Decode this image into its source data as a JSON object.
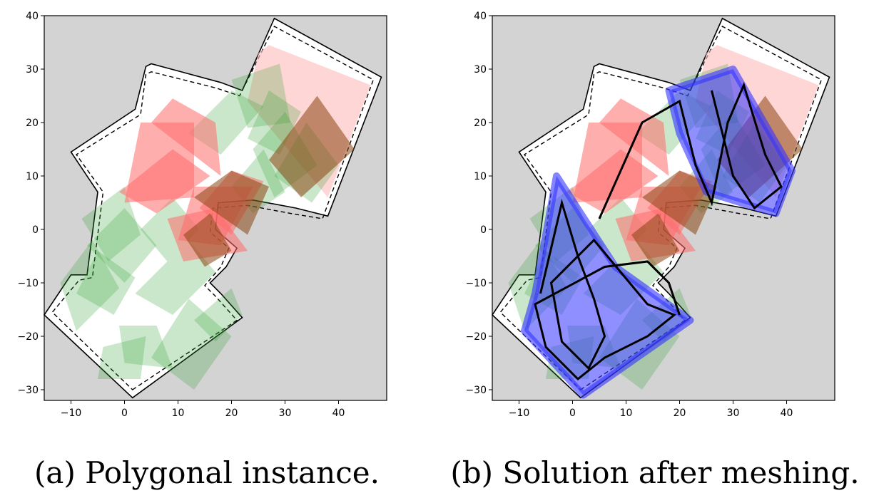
{
  "chart_data": [
    {
      "type": "polygon-plot",
      "caption": "(a) Polygonal instance.",
      "xlim": [
        -15,
        49
      ],
      "ylim": [
        -32,
        40
      ],
      "xticks": [
        -10,
        0,
        10,
        20,
        30,
        40
      ],
      "yticks": [
        -30,
        -20,
        -10,
        0,
        10,
        20,
        30,
        40
      ],
      "grid": false,
      "background": "#d3d3d3",
      "boundary": [
        [
          1.5,
          -31.5
        ],
        [
          22,
          -16.5
        ],
        [
          18,
          -12
        ],
        [
          16,
          -10
        ],
        [
          19,
          -7
        ],
        [
          21,
          -3.5
        ],
        [
          17,
          0
        ],
        [
          17.5,
          5
        ],
        [
          24,
          5.5
        ],
        [
          32,
          4
        ],
        [
          38,
          2.5
        ],
        [
          48,
          28.5
        ],
        [
          28,
          39.5
        ],
        [
          22,
          26
        ],
        [
          18,
          27.5
        ],
        [
          5,
          31
        ],
        [
          4,
          30.5
        ],
        [
          2,
          22.5
        ],
        [
          -10,
          14.5
        ],
        [
          -5,
          7
        ],
        [
          -7,
          -8.5
        ],
        [
          -10,
          -8.5
        ],
        [
          -15,
          -16
        ]
      ],
      "inner_boundary": [
        [
          1.5,
          -30
        ],
        [
          21,
          -17
        ],
        [
          17,
          -12.5
        ],
        [
          15,
          -10.5
        ],
        [
          18,
          -7
        ],
        [
          19.5,
          -3.5
        ],
        [
          16,
          -0.5
        ],
        [
          16.5,
          4
        ],
        [
          23,
          4.5
        ],
        [
          31,
          3
        ],
        [
          37,
          2
        ],
        [
          46.5,
          28
        ],
        [
          28,
          38
        ],
        [
          21.5,
          25
        ],
        [
          17,
          26.5
        ],
        [
          5,
          29.5
        ],
        [
          4,
          29
        ],
        [
          3,
          21.5
        ],
        [
          -9,
          14
        ],
        [
          -4,
          7
        ],
        [
          -6,
          -9
        ],
        [
          -8.5,
          -9.5
        ],
        [
          -13.5,
          -15.5
        ]
      ],
      "colors": {
        "obstacle": "#ff6b6b",
        "reward": "#2e9e2e",
        "ignore": "#ffc0c0",
        "edge": "#000000"
      }
    },
    {
      "type": "polygon-plot",
      "caption": "(b) Solution after meshing.",
      "xlim": [
        -15,
        49
      ],
      "ylim": [
        -32,
        40
      ],
      "xticks": [
        -10,
        0,
        10,
        20,
        30,
        40
      ],
      "yticks": [
        -30,
        -20,
        -10,
        0,
        10,
        20,
        30,
        40
      ],
      "grid": false,
      "background": "#d3d3d3",
      "colors": {
        "coverage": "#3333ff",
        "path": "#000000"
      }
    }
  ]
}
